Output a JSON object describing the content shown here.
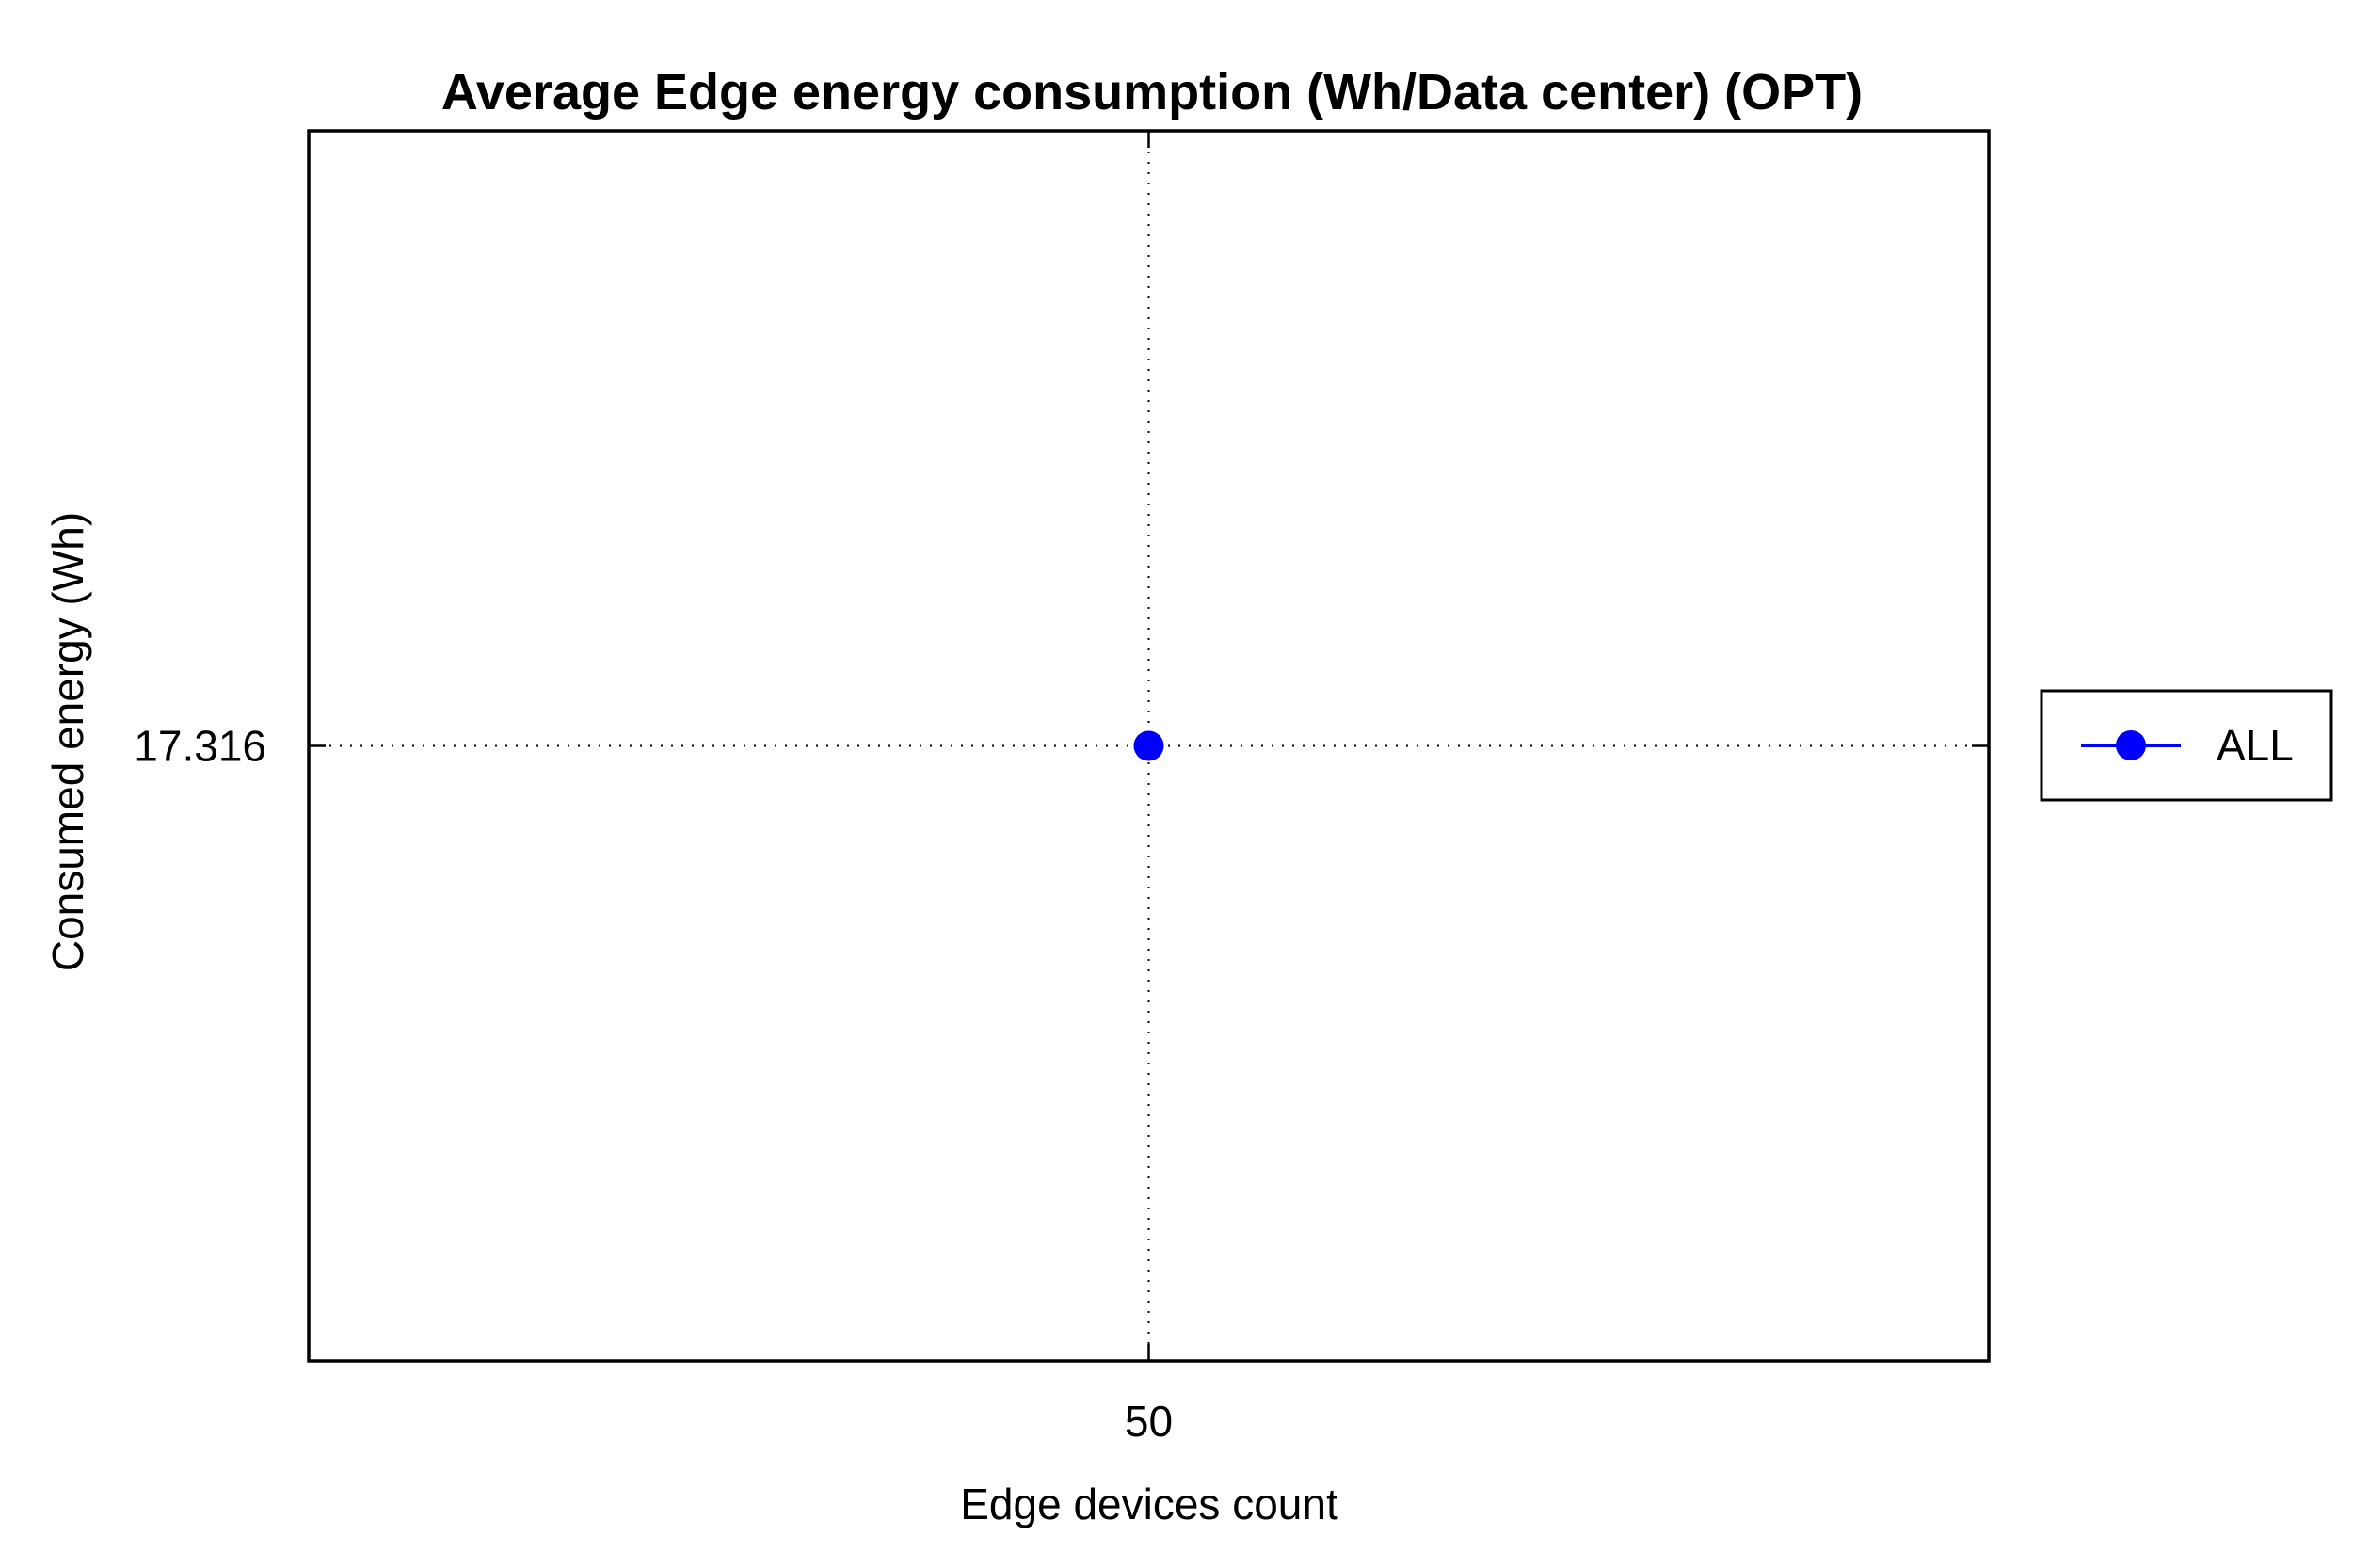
{
  "chart_data": {
    "type": "line",
    "title": "Average Edge energy consumption (Wh/Data center) (OPT)",
    "xlabel": "Edge devices count",
    "ylabel": "Consumed energy (Wh)",
    "x": [
      50
    ],
    "x_ticks": [
      "50"
    ],
    "y_ticks": [
      "17.316"
    ],
    "xlim": [
      49,
      51
    ],
    "ylim": [
      16.316,
      18.316
    ],
    "grid": true,
    "legend_position": "right",
    "series": [
      {
        "name": "ALL",
        "color": "#0000ff",
        "marker": "circle",
        "values": [
          17.316
        ]
      }
    ]
  }
}
